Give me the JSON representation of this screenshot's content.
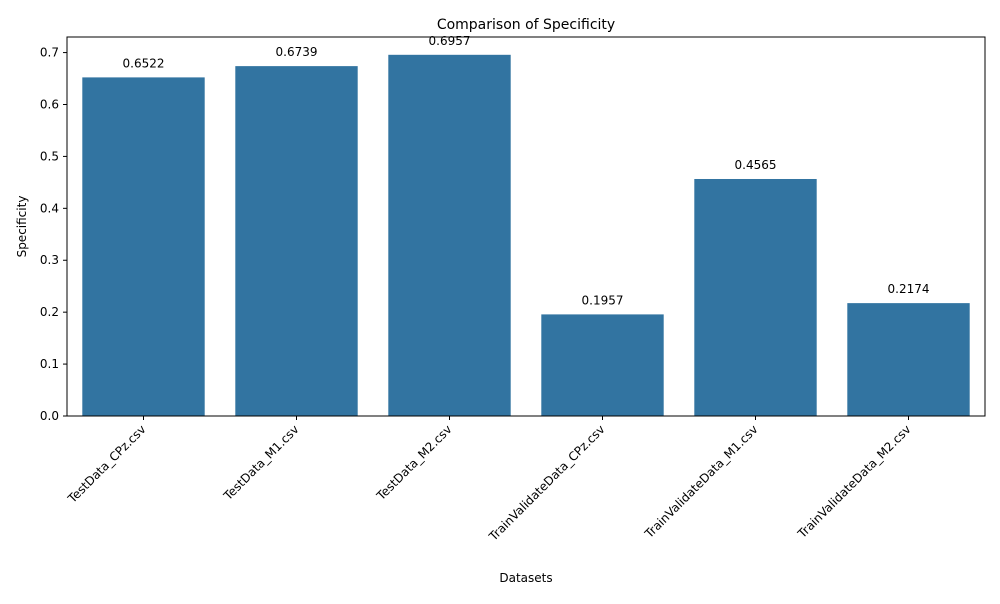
{
  "chart_data": {
    "type": "bar",
    "title": "Comparison of Specificity",
    "xlabel": "Datasets",
    "ylabel": "Specificity",
    "categories": [
      "TestData_CPz.csv",
      "TestData_M1.csv",
      "TestData_M2.csv",
      "TrainValidateData_CPz.csv",
      "TrainValidateData_M1.csv",
      "TrainValidateData_M2.csv"
    ],
    "values": [
      0.6522,
      0.6739,
      0.6957,
      0.1957,
      0.4565,
      0.2174
    ],
    "value_labels": [
      "0.6522",
      "0.6739",
      "0.6957",
      "0.1957",
      "0.4565",
      "0.2174"
    ],
    "ylim": [
      0,
      0.73
    ],
    "yticks": [
      0.0,
      0.1,
      0.2,
      0.3,
      0.4,
      0.5,
      0.6,
      0.7
    ],
    "ytick_labels": [
      "0.0",
      "0.1",
      "0.2",
      "0.3",
      "0.4",
      "0.5",
      "0.6",
      "0.7"
    ],
    "grid": false,
    "legend": "none",
    "bar_color": "#3274a1"
  }
}
